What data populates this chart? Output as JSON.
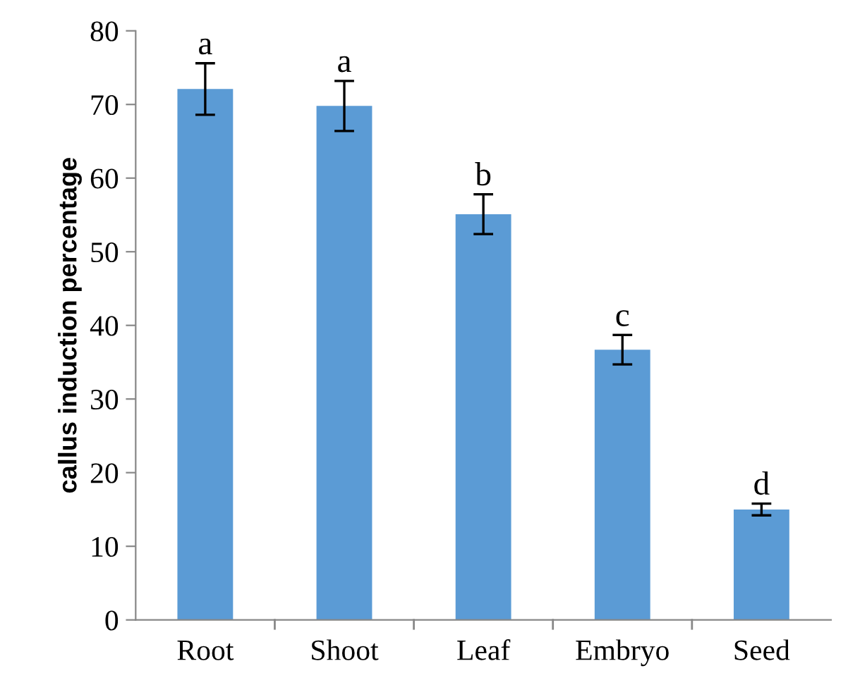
{
  "chart_data": {
    "type": "bar",
    "ylabel": "callus induction percentage",
    "categories": [
      "Root",
      "Shoot",
      "Leaf",
      "Embryo",
      "Seed"
    ],
    "values": [
      72.1,
      69.8,
      55.1,
      36.7,
      15.0
    ],
    "errors": [
      3.5,
      3.4,
      2.7,
      2.0,
      0.8
    ],
    "color": "#5b9bd5",
    "ylim": [
      0,
      80
    ],
    "yticks": [
      0,
      10,
      20,
      30,
      40,
      50,
      60,
      70,
      80
    ],
    "annotations": [
      {
        "text": "a",
        "x": "Root",
        "y": 75.6
      },
      {
        "text": "a",
        "x": "Shoot",
        "y": 73.2
      },
      {
        "text": "b",
        "x": "Leaf",
        "y": 57.8
      },
      {
        "text": "c",
        "x": "Embryo",
        "y": 38.7
      },
      {
        "text": "d",
        "x": "Seed",
        "y": 15.8
      }
    ],
    "grid": false,
    "legend": false
  }
}
